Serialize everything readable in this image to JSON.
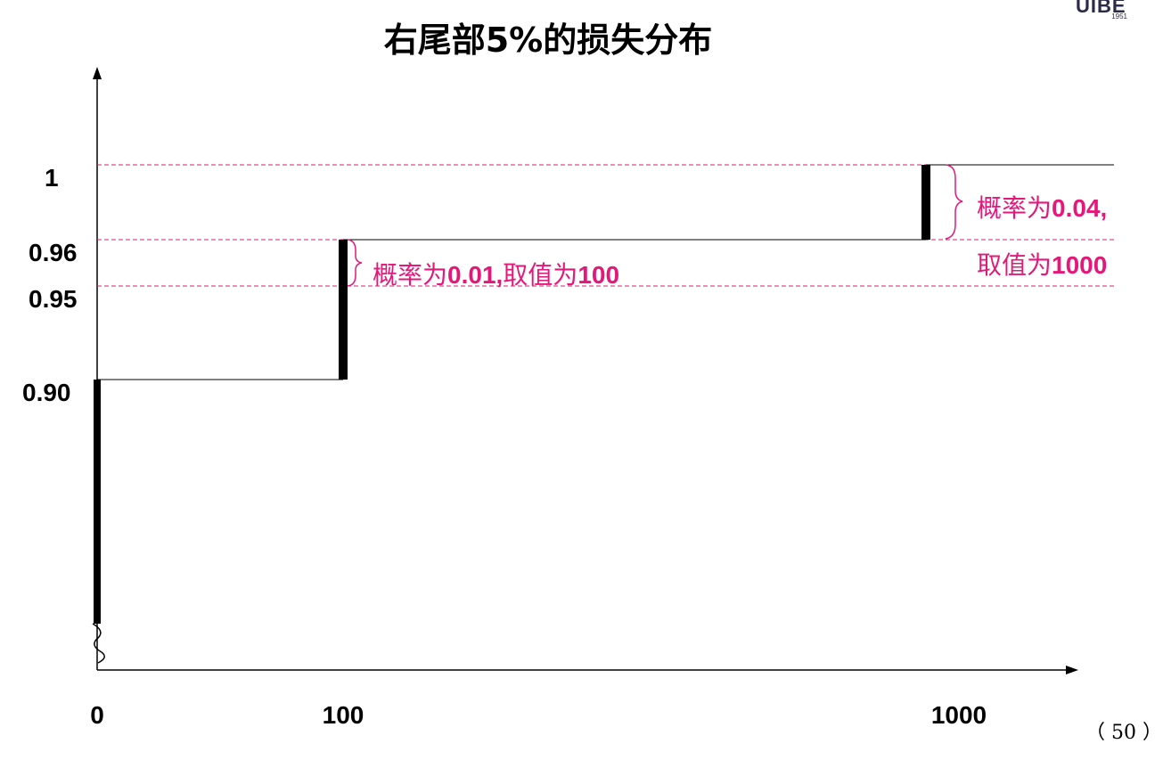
{
  "title": "右尾部5%的损失分布",
  "logo": {
    "text": "UIBE",
    "year": "1951"
  },
  "page_number": "（ 50 ）",
  "annotations": {
    "a1": {
      "prefix": "概率为",
      "value": "0.01,",
      "tail_cn": "取值为",
      "tail_num": "100"
    },
    "a2": {
      "line1_prefix": "概率为",
      "line1_value": "0.04,",
      "line2_prefix": "取值为",
      "line2_value": "1000"
    }
  },
  "chart_data": {
    "type": "line",
    "subtype": "step-cdf",
    "title": "右尾部5%的损失分布",
    "x_ticks": [
      "0",
      "100",
      "1000"
    ],
    "y_ticks": [
      "1",
      "0.96",
      "0.95",
      "0.90"
    ],
    "y_tick_values": [
      1,
      0.96,
      0.95,
      0.9
    ],
    "x_scale": "categorical",
    "y_axis_break": true,
    "series": [
      {
        "steps": [
          {
            "x": 0,
            "y_from": 0.9,
            "y_to": 0.9
          },
          {
            "x": 100,
            "y_from": 0.9,
            "y_to": 0.96
          },
          {
            "x": 1000,
            "y_from": 0.96,
            "y_to": 1.0
          }
        ],
        "points": [
          [
            0,
            0.9
          ],
          [
            100,
            0.96
          ],
          [
            1000,
            1.0
          ]
        ]
      }
    ],
    "reference_lines_y": [
      1.0,
      0.96,
      0.95
    ],
    "colors": {
      "axis": "#000000",
      "step": "#000000",
      "reference": "#e5187a",
      "annotation": "#e5187a"
    }
  }
}
